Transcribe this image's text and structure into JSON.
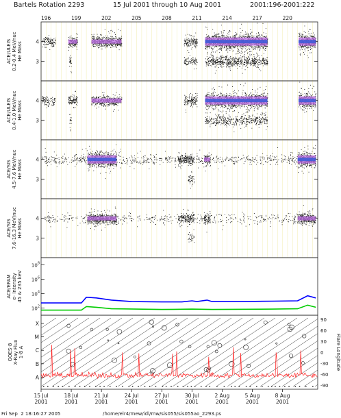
{
  "header": {
    "title": "Bartels Rotation 2293",
    "range": "15 Jul 2001 through 10 Aug 2001",
    "doy": "2001:196-2001:222"
  },
  "footer": {
    "timestamp": "Fri Sep  2 18:16:27 2005",
    "path": "/home/elr4/mew/idl/mw/sis055/sis055ao_2293.ps"
  },
  "chart_data": {
    "type": "scatter",
    "x_range_doy": [
      196,
      223.5
    ],
    "top_axis_ticks": [
      "196",
      "199",
      "202",
      "205",
      "208",
      "211",
      "214",
      "217",
      "220"
    ],
    "bottom_axis_ticks": [
      {
        "day": "15 Jul",
        "year": "2001"
      },
      {
        "day": "18 Jul",
        "year": "2001"
      },
      {
        "day": "21 Jul",
        "year": "2001"
      },
      {
        "day": "24 Jul",
        "year": "2001"
      },
      {
        "day": "27 Jul",
        "year": "2001"
      },
      {
        "day": "30 Jul",
        "year": "2001"
      },
      {
        "day": "2 Aug",
        "year": "2001"
      },
      {
        "day": "5 Aug",
        "year": "2001"
      },
      {
        "day": "8 Aug",
        "year": "2001"
      }
    ],
    "panels": [
      {
        "label_lines": [
          "ACE/ULEIS",
          "0.2-0.4 MeV/nuc",
          "He Mass"
        ],
        "ylim": [
          2,
          5
        ],
        "yticks": [
          "3",
          "4"
        ],
        "clusters": [
          {
            "x0": 196.0,
            "x1": 197.4,
            "y": 4.0,
            "dens": 0.5
          },
          {
            "x0": 198.7,
            "x1": 199.6,
            "y": 4.0,
            "dens": 1.0
          },
          {
            "x0": 198.8,
            "x1": 199.0,
            "y": 3.0,
            "dens": 0.8
          },
          {
            "x0": 201.0,
            "x1": 204.0,
            "y": 4.0,
            "dens": 1.0
          },
          {
            "x0": 210.2,
            "x1": 211.5,
            "y": 4.0,
            "dens": 0.6
          },
          {
            "x0": 210.2,
            "x1": 211.5,
            "y": 3.0,
            "dens": 0.4
          },
          {
            "x0": 212.3,
            "x1": 218.5,
            "y": 4.0,
            "dens": 1.4
          },
          {
            "x0": 212.3,
            "x1": 218.5,
            "y": 3.0,
            "dens": 0.6
          },
          {
            "x0": 221.6,
            "x1": 223.3,
            "y": 4.0,
            "dens": 1.4
          }
        ]
      },
      {
        "label_lines": [
          "ACE/ULEIS",
          "0.4-1.0 MeV/nuc",
          "He Mass"
        ],
        "ylim": [
          2,
          5
        ],
        "yticks": [
          "3",
          "4"
        ],
        "clusters": [
          {
            "x0": 196.0,
            "x1": 197.4,
            "y": 4.0,
            "dens": 0.4
          },
          {
            "x0": 198.7,
            "x1": 199.6,
            "y": 4.0,
            "dens": 0.7
          },
          {
            "x0": 198.8,
            "x1": 199.0,
            "y": 3.0,
            "dens": 0.5
          },
          {
            "x0": 201.0,
            "x1": 204.0,
            "y": 4.0,
            "dens": 0.8
          },
          {
            "x0": 210.2,
            "x1": 211.5,
            "y": 4.0,
            "dens": 0.6
          },
          {
            "x0": 212.3,
            "x1": 218.5,
            "y": 4.0,
            "dens": 1.2
          },
          {
            "x0": 212.3,
            "x1": 218.5,
            "y": 3.0,
            "dens": 0.4
          },
          {
            "x0": 221.6,
            "x1": 223.3,
            "y": 4.0,
            "dens": 1.2
          }
        ]
      },
      {
        "label_lines": [
          "ACE/SIS",
          "4.5-7.6 MeV/nuc",
          "He Mass"
        ],
        "ylim": [
          2,
          5
        ],
        "yticks": [
          "3",
          "4"
        ],
        "clusters": [
          {
            "x0": 196.0,
            "x1": 223.3,
            "y": 4.0,
            "dens": 0.15
          },
          {
            "x0": 200.6,
            "x1": 203.5,
            "y": 4.0,
            "dens": 1.2
          },
          {
            "x0": 209.6,
            "x1": 211.2,
            "y": 4.0,
            "dens": 0.7
          },
          {
            "x0": 210.6,
            "x1": 211.2,
            "y": 3.0,
            "dens": 0.4
          },
          {
            "x0": 212.2,
            "x1": 212.8,
            "y": 4.0,
            "dens": 0.8
          },
          {
            "x0": 221.5,
            "x1": 223.3,
            "y": 4.0,
            "dens": 1.2
          }
        ]
      },
      {
        "label_lines": [
          "ACE/SIS",
          "7.6-16.3 MeV/nuc",
          "He Mass"
        ],
        "ylim": [
          2,
          5
        ],
        "yticks": [
          "3",
          "4"
        ],
        "clusters": [
          {
            "x0": 196.0,
            "x1": 223.3,
            "y": 4.0,
            "dens": 0.1
          },
          {
            "x0": 200.6,
            "x1": 203.5,
            "y": 4.0,
            "dens": 1.0
          },
          {
            "x0": 209.6,
            "x1": 211.2,
            "y": 4.0,
            "dens": 0.6
          },
          {
            "x0": 210.6,
            "x1": 211.2,
            "y": 3.0,
            "dens": 0.3
          },
          {
            "x0": 212.2,
            "x1": 212.8,
            "y": 4.0,
            "dens": 0.7
          },
          {
            "x0": 221.5,
            "x1": 223.3,
            "y": 4.0,
            "dens": 1.0
          }
        ]
      }
    ],
    "epam": {
      "label_lines": [
        "ACE/EPAM",
        "e- Intensity",
        "45 & 235 keV"
      ],
      "yticks": [
        "10^2",
        "10^4",
        "10^6",
        "10^8"
      ],
      "series": [
        {
          "color": "#0000ff",
          "points": [
            [
              196,
              2.7
            ],
            [
              200.0,
              2.7
            ],
            [
              200.5,
              3.5
            ],
            [
              201.5,
              3.4
            ],
            [
              203,
              3.1
            ],
            [
              205,
              2.9
            ],
            [
              208,
              2.85
            ],
            [
              210,
              2.85
            ],
            [
              211,
              3.0
            ],
            [
              211.5,
              2.9
            ],
            [
              212.5,
              3.1
            ],
            [
              213,
              2.9
            ],
            [
              216,
              2.9
            ],
            [
              219,
              2.95
            ],
            [
              221.5,
              3.0
            ],
            [
              222.5,
              3.7
            ],
            [
              223.3,
              3.4
            ]
          ]
        },
        {
          "color": "#00cc00",
          "points": [
            [
              196,
              1.7
            ],
            [
              200.0,
              1.7
            ],
            [
              200.5,
              2.2
            ],
            [
              201.5,
              2.1
            ],
            [
              203,
              1.9
            ],
            [
              208,
              1.8
            ],
            [
              211,
              1.85
            ],
            [
              213,
              1.8
            ],
            [
              219,
              1.85
            ],
            [
              221.5,
              1.9
            ],
            [
              222.5,
              2.4
            ],
            [
              223.3,
              2.1
            ]
          ]
        }
      ]
    },
    "goes": {
      "label_lines": [
        "GOES-8",
        "X-Ray Flux",
        "1-8 A"
      ],
      "left_ticks": [
        "X",
        "M",
        "C",
        "B",
        "A"
      ],
      "right_label": "Flare Longitude",
      "right_ticks": [
        "90",
        "60",
        "30",
        "0",
        "-30",
        "-60",
        "-90"
      ]
    }
  }
}
